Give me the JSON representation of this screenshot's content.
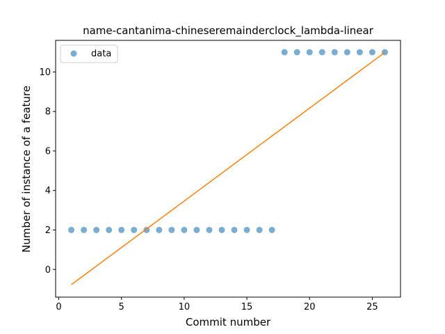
{
  "chart_data": {
    "type": "scatter",
    "title": "name-cantanima-chineseremainderclock_lambda-linear",
    "xlabel": "Commit number",
    "ylabel": "Number of instance of a feature",
    "xlim": [
      -0.25,
      27.25
    ],
    "ylim": [
      -1.4,
      11.6
    ],
    "x_ticks": [
      0,
      5,
      10,
      15,
      20,
      25
    ],
    "y_ticks": [
      0,
      2,
      4,
      6,
      8,
      10
    ],
    "grid": false,
    "legend_position": "top-left",
    "series": [
      {
        "name": "data",
        "kind": "scatter",
        "color": "#1f77b4",
        "x": [
          1,
          2,
          3,
          4,
          5,
          6,
          7,
          8,
          9,
          10,
          11,
          12,
          13,
          14,
          15,
          16,
          17,
          18,
          19,
          20,
          21,
          22,
          23,
          24,
          25,
          26
        ],
        "y": [
          2,
          2,
          2,
          2,
          2,
          2,
          2,
          2,
          2,
          2,
          2,
          2,
          2,
          2,
          2,
          2,
          2,
          11,
          11,
          11,
          11,
          11,
          11,
          11,
          11,
          11
        ]
      },
      {
        "kind": "line",
        "color": "#ff7f0e",
        "x": [
          1,
          26
        ],
        "y": [
          -0.77,
          10.99
        ]
      }
    ]
  }
}
